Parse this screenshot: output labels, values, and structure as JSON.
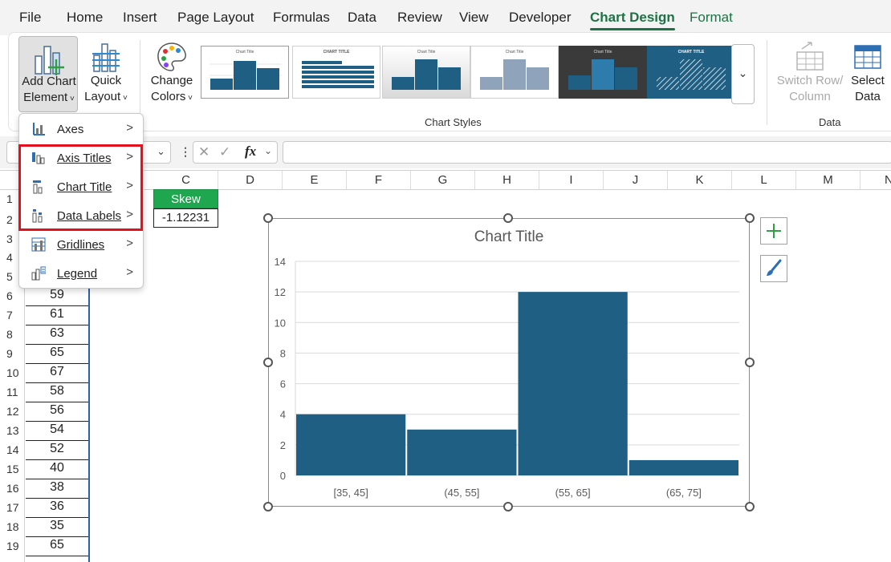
{
  "ribbon": {
    "tabs": [
      {
        "label": "File"
      },
      {
        "label": "Home"
      },
      {
        "label": "Insert"
      },
      {
        "label": "Page Layout"
      },
      {
        "label": "Formulas"
      },
      {
        "label": "Data"
      },
      {
        "label": "Review"
      },
      {
        "label": "View"
      },
      {
        "label": "Developer"
      },
      {
        "label": "Chart Design"
      },
      {
        "label": "Format"
      }
    ],
    "add_chart_element": {
      "line1": "Add Chart",
      "line2": "Element"
    },
    "quick_layout": {
      "line1": "Quick",
      "line2": "Layout"
    },
    "change_colors": {
      "line1": "Change",
      "line2": "Colors"
    },
    "chart_styles_label": "Chart Styles",
    "style_thumbnails": [
      {
        "title": "Chart Title"
      },
      {
        "title": "CHART TITLE"
      },
      {
        "title": "Chart Title"
      },
      {
        "title": "Chart Title"
      },
      {
        "title": "Chart Title"
      },
      {
        "title": "CHART TITLE"
      }
    ],
    "switch_row_column": {
      "line1": "Switch Row/",
      "line2": "Column"
    },
    "select_data": {
      "line1": "Select",
      "line2": "Data"
    },
    "data_group_label": "Data"
  },
  "formula_bar": {
    "fx_label": "fx",
    "formula_value": ""
  },
  "menu": {
    "items": [
      {
        "label": "Axes"
      },
      {
        "label": "Axis Titles"
      },
      {
        "label": "Chart Title"
      },
      {
        "label": "Data Labels"
      },
      {
        "label": "Gridlines"
      },
      {
        "label": "Legend"
      }
    ]
  },
  "sheet": {
    "columns": [
      "C",
      "D",
      "E",
      "F",
      "G",
      "H",
      "I",
      "J",
      "K",
      "L",
      "M",
      "N"
    ],
    "rows": [
      "1",
      "2",
      "3",
      "4",
      "5",
      "6",
      "7",
      "8",
      "9",
      "10",
      "11",
      "12",
      "13",
      "14",
      "15",
      "16",
      "17",
      "18",
      "19"
    ],
    "col_a_values": [
      {
        "row": "6",
        "value": "59"
      },
      {
        "row": "7",
        "value": "61"
      },
      {
        "row": "8",
        "value": "63"
      },
      {
        "row": "9",
        "value": "65"
      },
      {
        "row": "10",
        "value": "67"
      },
      {
        "row": "11",
        "value": "58"
      },
      {
        "row": "12",
        "value": "56"
      },
      {
        "row": "13",
        "value": "54"
      },
      {
        "row": "14",
        "value": "52"
      },
      {
        "row": "15",
        "value": "40"
      },
      {
        "row": "16",
        "value": "38"
      },
      {
        "row": "17",
        "value": "36"
      },
      {
        "row": "18",
        "value": "35"
      },
      {
        "row": "19",
        "value": "65"
      }
    ],
    "skew_header": "Skew",
    "skew_value": "-1.12231"
  },
  "colors": {
    "accent_green": "#1e7145",
    "bar_color": "#1f5f84",
    "highlight_red": "#e3101e",
    "skew_header_bg": "#1fa750"
  },
  "chart_data": {
    "type": "bar",
    "title": "Chart Title",
    "categories": [
      "[35, 45]",
      "(45, 55]",
      "(55, 65]",
      "(65, 75]"
    ],
    "values": [
      4,
      3,
      12,
      1
    ],
    "ylim": [
      0,
      14
    ],
    "yticks": [
      0,
      2,
      4,
      6,
      8,
      10,
      12,
      14
    ],
    "grid": true,
    "xlabel": "",
    "ylabel": ""
  }
}
